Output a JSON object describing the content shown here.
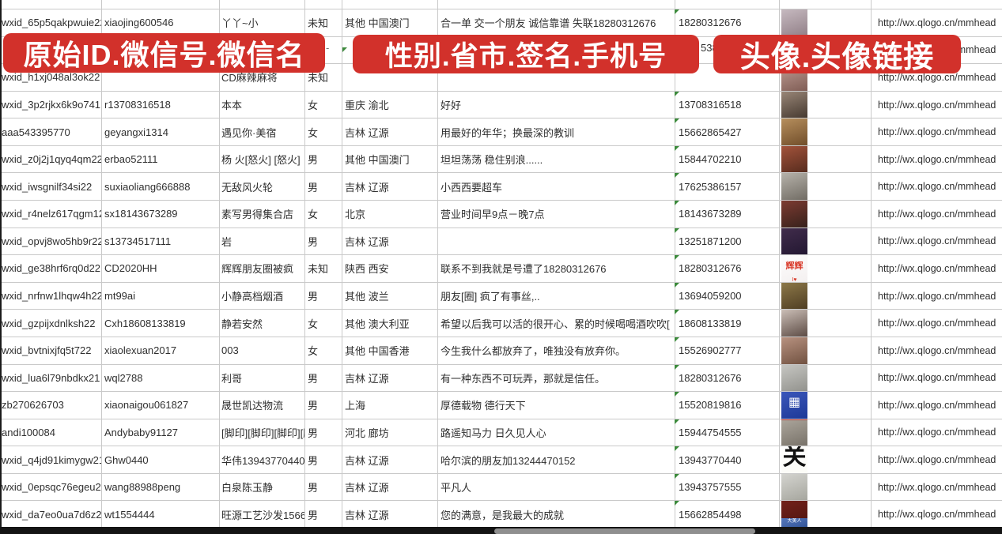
{
  "banners": {
    "b1": "原始ID.微信号.微信名",
    "b2": "性别.省市.签名.手机号",
    "b3": "头像.头像链接",
    "color": "#d2312b"
  },
  "fragments": {
    "hidden_phone_tail": "5386",
    "hidden_gender_dash": "-"
  },
  "grid": {
    "gridline_color": "#c9c9c9",
    "flag_color": "#3c8a3c"
  },
  "rows": [
    {
      "id": "wxid_65p5qakpwuie22",
      "wx": "xiaojing600546",
      "name": "丫丫~小",
      "gender": "未知",
      "region": "其他 中国澳门",
      "sig": "合一单 交一个朋友 诚信靠谱 失联18280312676",
      "phone": "18280312676",
      "url": "http://wx.qlogo.cn/mmhead",
      "avatar": {
        "c1": "#cfc3c9",
        "c2": "#8f7d85"
      }
    },
    {
      "id": "",
      "wx": "",
      "name": "",
      "gender": "",
      "region": "",
      "sig": "",
      "phone": "",
      "url": "http://wx.qlogo.cn/mmhead",
      "avatar": null
    },
    {
      "id": "wxid_h1xj048al3ok22",
      "wx": "",
      "name": "CD麻辣麻将",
      "gender": "未知",
      "region": "",
      "sig": "",
      "phone": "",
      "url": "http://wx.qlogo.cn/mmhead",
      "avatar": {
        "c1": "#caa9a0",
        "c2": "#7d5a52"
      }
    },
    {
      "id": "wxid_3p2rjkx6k9o741",
      "wx": "r13708316518",
      "name": "本本",
      "gender": "女",
      "region": "重庆 渝北",
      "sig": "好好",
      "phone": "13708316518",
      "url": "http://wx.qlogo.cn/mmhead",
      "avatar": {
        "c1": "#a89484",
        "c2": "#40342b"
      }
    },
    {
      "id": "aaa543395770",
      "wx": "geyangxi1314",
      "name": "遇见你·美宿",
      "gender": "女",
      "region": "吉林 辽源",
      "sig": "用最好的年华；换最深的教训",
      "phone": "15662865427",
      "url": "http://wx.qlogo.cn/mmhead",
      "avatar": {
        "c1": "#c29a66",
        "c2": "#6e4b28"
      }
    },
    {
      "id": "wxid_z0j2j1qyq4qm22",
      "wx": "erbao52111",
      "name": "杨 火[怒火] [怒火]",
      "gender": "男",
      "region": "其他 中国澳门",
      "sig": "坦坦荡荡 稳住别浪......",
      "phone": "15844702210",
      "url": "http://wx.qlogo.cn/mmhead",
      "avatar": {
        "c1": "#b05a40",
        "c2": "#52291c"
      }
    },
    {
      "id": "wxid_iwsgnilf34si22",
      "wx": "suxiaoliang666888",
      "name": "无敌风火轮",
      "gender": "男",
      "region": "吉林 辽源",
      "sig": "小西西要超车",
      "phone": "17625386157",
      "url": "http://wx.qlogo.cn/mmhead",
      "avatar": {
        "c1": "#c2beb6",
        "c2": "#6e6961"
      }
    },
    {
      "id": "wxid_r4nelz617qgm12",
      "wx": "sx18143673289",
      "name": "素写男得集合店",
      "gender": "女",
      "region": "北京",
      "sig": "营业时间早9点－晚7点",
      "phone": "18143673289",
      "url": "http://wx.qlogo.cn/mmhead",
      "avatar": {
        "c1": "#8a4036",
        "c2": "#33201a"
      }
    },
    {
      "id": "wxid_opvj8wo5hb9r22",
      "wx": "s13734517111",
      "name": "岩",
      "gender": "男",
      "region": "吉林 辽源",
      "sig": "",
      "phone": "13251871200",
      "url": "http://wx.qlogo.cn/mmhead",
      "avatar": {
        "c1": "#463050",
        "c2": "#211630"
      }
    },
    {
      "id": "wxid_ge38hrf6rq0d22",
      "wx": "CD2020HH",
      "name": "辉辉朋友圈被疯",
      "gender": "未知",
      "region": "陕西 西安",
      "sig": "联系不到我就是号遭了18280312676",
      "phone": "18280312676",
      "url": "http://wx.qlogo.cn/mmhead",
      "avatar": {
        "c1": "#ffffff",
        "c2": "#f3efef",
        "label": "辉辉",
        "lc": "#d93a2a",
        "ls": 11,
        "sub": "I♥",
        "subc": "#d93a2a",
        "subpos": "bottom"
      }
    },
    {
      "id": "wxid_nrfnw1lhqw4h22",
      "wx": "mt99ai",
      "name": "小静高档烟酒",
      "gender": "男",
      "region": "其他 波兰",
      "sig": "朋友[圈] 疯了有事丝,..",
      "phone": "13694059200",
      "url": "http://wx.qlogo.cn/mmhead",
      "avatar": {
        "c1": "#97824f",
        "c2": "#4b3a20"
      }
    },
    {
      "id": "wxid_gzpijxdnlksh22",
      "wx": "Cxh18608133819",
      "name": "静若安然",
      "gender": "女",
      "region": "其他 澳大利亚",
      "sig": "希望以后我可以活的很开心、累的时候喝喝酒吹吹[",
      "phone": "18608133819",
      "url": "http://wx.qlogo.cn/mmhead",
      "avatar": {
        "c1": "#ded2ca",
        "c2": "#584740"
      }
    },
    {
      "id": "wxid_bvtnixjfq5t722",
      "wx": "xiaolexuan2017",
      "name": "003",
      "gender": "女",
      "region": "其他 中国香港",
      "sig": "今生我什么都放弃了，唯独没有放弃你。",
      "phone": "15526902777",
      "url": "http://wx.qlogo.cn/mmhead",
      "avatar": {
        "c1": "#c49d8b",
        "c2": "#6e4f3e"
      }
    },
    {
      "id": "wxid_lua6l79nbdkx21",
      "wx": "wql2788",
      "name": "利哥",
      "gender": "男",
      "region": "吉林 辽源",
      "sig": "有一种东西不可玩弄，那就是信任。",
      "phone": "18280312676",
      "url": "http://wx.qlogo.cn/mmhead",
      "avatar": {
        "c1": "#cfcfcb",
        "c2": "#8f8f8a"
      }
    },
    {
      "id": "zb270626703",
      "wx": "xiaonaigou061827",
      "name": "晟世凯达物流",
      "gender": "男",
      "region": "上海",
      "sig": "厚德载物 德行天下",
      "phone": "15520819816",
      "url": "http://wx.qlogo.cn/mmhead",
      "avatar": {
        "c1": "#3f5cc0",
        "c2": "#1c3796",
        "label": "▦",
        "lc": "#ffffff",
        "ls": 16
      }
    },
    {
      "id": "andi100084",
      "wx": "Andybaby91127",
      "name": "[脚印][脚印][脚印][脚",
      "gender": "男",
      "region": "河北 廊坊",
      "sig": "路遥知马力 日久见人心",
      "phone": "15944754555",
      "url": "http://wx.qlogo.cn/mmhead",
      "avatar": {
        "c1": "#b5afa5",
        "c2": "#756f66",
        "sub": " ",
        "subbg": "#b23028",
        "subpos": "top"
      }
    },
    {
      "id": "wxid_q4jd91kimygw21",
      "wx": "Ghw0440",
      "name": "华伟13943770440",
      "gender": "男",
      "region": "吉林 辽源",
      "sig": "哈尔滨的朋友加13244470152",
      "phone": "13943770440",
      "url": "http://wx.qlogo.cn/mmhead",
      "avatar": {
        "c1": "#ffffff",
        "c2": "#fbfbf6",
        "label": "关",
        "lc": "#111111",
        "ls": 30
      }
    },
    {
      "id": "wxid_0epsqc76egeu22",
      "wx": "wang88988peng",
      "name": "白泉陈玉静",
      "gender": "男",
      "region": "吉林 辽源",
      "sig": "平凡人",
      "phone": "13943757555",
      "url": "http://wx.qlogo.cn/mmhead",
      "avatar": {
        "c1": "#dcdcd8",
        "c2": "#a3a39b"
      }
    },
    {
      "id": "wxid_da7eo0ua7d6z22",
      "wx": "wt1554444",
      "name": "旺源工艺沙发15662854",
      "gender": "男",
      "region": "吉林 辽源",
      "sig": "您的满意，是我最大的成就",
      "phone": "15662854498",
      "url": "http://wx.qlogo.cn/mmhead",
      "avatar": {
        "c1": "#7a241c",
        "c2": "#4a120e",
        "sub": "中国加油",
        "subc": "#ffffff",
        "subbg": "#c33020",
        "subpos": "bottom"
      }
    }
  ],
  "partial_avatar": {
    "c1": "#5577bb",
    "c2": "#335599",
    "label": "大美人"
  }
}
